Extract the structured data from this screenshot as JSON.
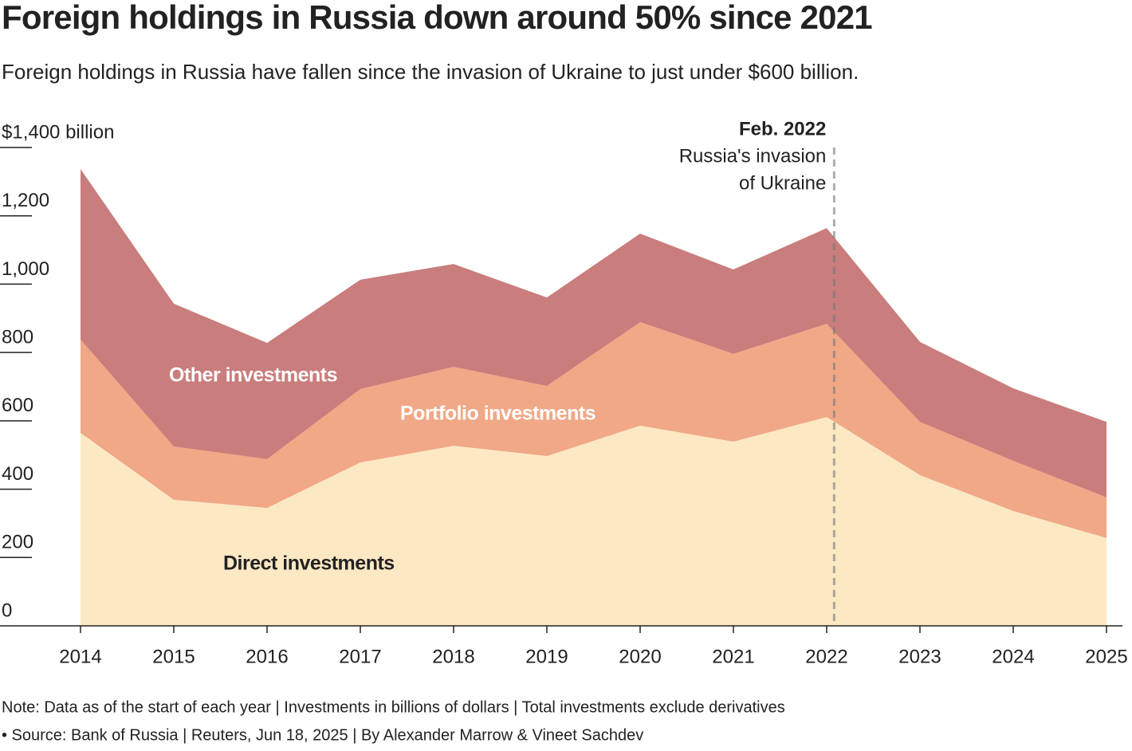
{
  "chart_data": {
    "type": "stacked-area",
    "title": "Foreign holdings in Russia down around 50% since 2021",
    "subtitle": "Foreign holdings in Russia have fallen since the invasion of Ukraine to just under $600 billion.",
    "x": [
      2014,
      2015,
      2016,
      2017,
      2018,
      2019,
      2020,
      2021,
      2022,
      2023,
      2024,
      2025
    ],
    "xlim": [
      2014,
      2025
    ],
    "xticks": [
      2014,
      2015,
      2016,
      2017,
      2018,
      2019,
      2020,
      2021,
      2022,
      2023,
      2024,
      2025
    ],
    "ylim": [
      0,
      1400
    ],
    "yticks": [
      0,
      200,
      400,
      600,
      800,
      {
        "value": 1000,
        "label": "1,000"
      },
      {
        "value": 1200,
        "label": "1,200"
      },
      {
        "value": 1400,
        "label": "$1,400 billion"
      }
    ],
    "series": [
      {
        "name": "Direct investments",
        "color": "#fde8c4",
        "values": [
          565,
          369,
          345,
          478,
          527,
          497,
          586,
          539,
          611,
          441,
          336,
          257
        ]
      },
      {
        "name": "Portfolio investments",
        "color": "#f0a886",
        "values": [
          273,
          156,
          143,
          215,
          231,
          205,
          303,
          257,
          273,
          156,
          147,
          119
        ]
      },
      {
        "name": "Other investments",
        "color": "#c97d7c",
        "values": [
          499,
          418,
          340,
          320,
          301,
          259,
          259,
          247,
          280,
          234,
          212,
          221
        ]
      }
    ],
    "annotation": {
      "x": 2022.08,
      "label": "Feb. 2022",
      "text": [
        "Russia's invasion",
        "of Ukraine"
      ]
    },
    "notes": [
      "Note: Data as of the start of each year | Investments in billions of dollars | Total investments exclude derivatives",
      "• Source: Bank of Russia | Reuters, Jun 18, 2025 | By Alexander Marrow & Vineet Sachdev"
    ]
  }
}
